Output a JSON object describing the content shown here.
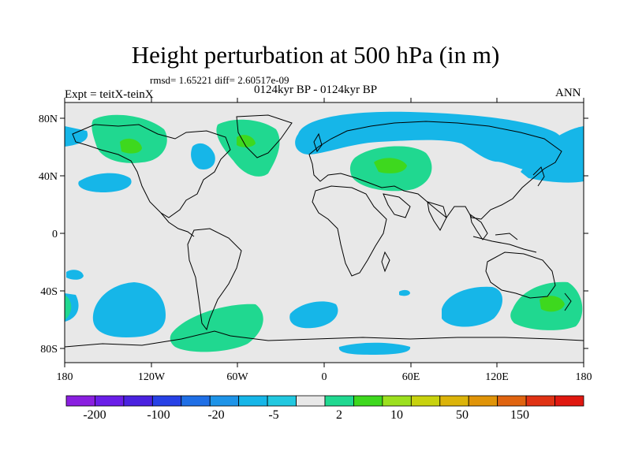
{
  "title": "Height perturbation at 500 hPa (in m)",
  "stats": "rmsd= 1.65221 diff= 2.60517e-09",
  "period": "0124kyr BP - 0124kyr BP",
  "expt": "Expt = teitX-teinX",
  "season": "ANN",
  "lat_labels": [
    "80N",
    "40N",
    "0",
    "40S",
    "80S"
  ],
  "lon_labels": [
    "180",
    "120W",
    "60W",
    "0",
    "60E",
    "120E",
    "180"
  ],
  "colorbar": {
    "labels": [
      "-200",
      "-100",
      "-20",
      "-5",
      "2",
      "10",
      "50",
      "150"
    ],
    "colors": [
      "#8a1fe0",
      "#6a1ee8",
      "#4a22e0",
      "#2741e6",
      "#1f6fe6",
      "#1e94e8",
      "#16b6e8",
      "#22c8e0",
      "#e8e8e8",
      "#20d890",
      "#3ed81e",
      "#9ce01e",
      "#c8d20e",
      "#dcb40a",
      "#e09408",
      "#e06410",
      "#e03214",
      "#e01810"
    ]
  }
}
